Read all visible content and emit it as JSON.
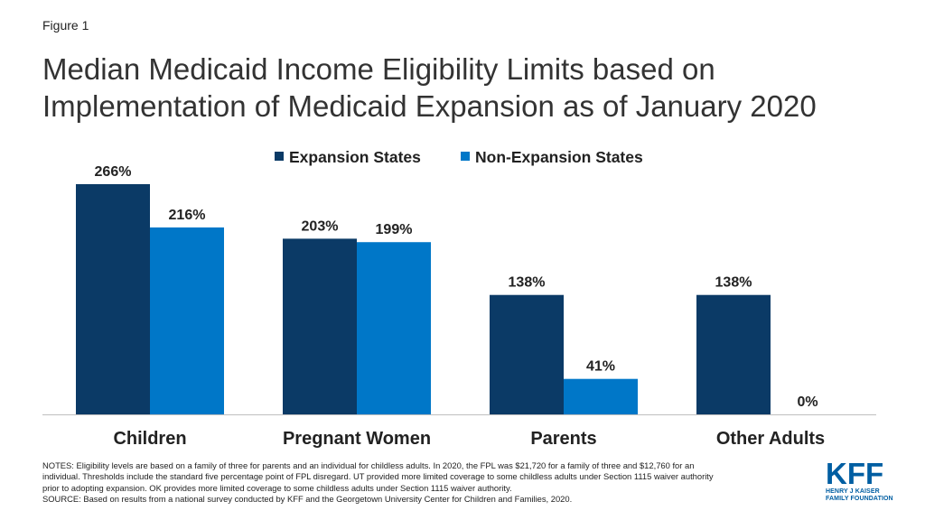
{
  "figure_label": "Figure 1",
  "title_line1": "Median Medicaid Income Eligibility Limits based on",
  "title_line2": "Implementation of Medicaid Expansion as of January 2020",
  "colors": {
    "expansion": "#0b3a66",
    "non_expansion": "#0077c8",
    "logo": "#005ea2",
    "baseline": "#bfbfbf"
  },
  "chart_data": {
    "type": "bar",
    "categories": [
      "Children",
      "Pregnant Women",
      "Parents",
      "Other Adults"
    ],
    "series": [
      {
        "name": "Expansion States",
        "values": [
          266,
          203,
          138,
          138
        ],
        "labels": [
          "266%",
          "203%",
          "138%",
          "138%"
        ]
      },
      {
        "name": "Non-Expansion States",
        "values": [
          216,
          199,
          41,
          0
        ],
        "labels": [
          "216%",
          "199%",
          "41%",
          "0%"
        ]
      }
    ],
    "ylim": [
      0,
      266
    ],
    "legend_position": "top",
    "grid": false
  },
  "notes": {
    "line1": "NOTES: Eligibility levels are based on a family of three for parents and an individual for childless adults. In 2020, the FPL was $21,720 for a family of three and $12,760 for an",
    "line2": "individual. Thresholds include the standard five percentage point of FPL disregard. UT provided more limited coverage to some childless adults under Section 1115 waiver authority",
    "line3": "prior to adopting expansion. OK provides more limited coverage to some childless adults under Section 1115 waiver authority.",
    "source": "SOURCE: Based on results from a national survey conducted by KFF and the Georgetown University Center for Children and Families, 2020."
  },
  "logo": {
    "mark": "KFF",
    "line1": "HENRY J KAISER",
    "line2": "FAMILY FOUNDATION"
  }
}
